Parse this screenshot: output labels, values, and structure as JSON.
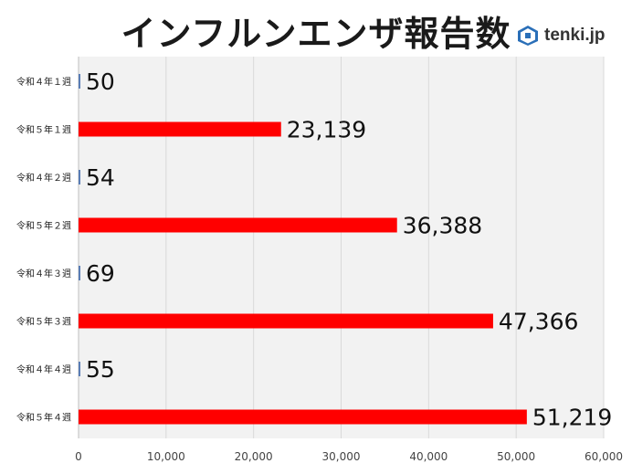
{
  "title": "インフルンエンザ報告数",
  "logo": {
    "text": "tenki.jp",
    "icon": "tenki-logo-icon"
  },
  "colors": {
    "red": "#FF0000",
    "blue": "#5A7DB5",
    "grid": "#D9D9D9",
    "plot_bg": "#F2F2F2"
  },
  "chart_data": {
    "type": "bar",
    "orientation": "horizontal",
    "title": "インフルンエンザ報告数",
    "categories": [
      "令和４年１週",
      "令和５年１週",
      "令和４年２週",
      "令和５年２週",
      "令和４年３週",
      "令和５年３週",
      "令和４年４週",
      "令和５年４週"
    ],
    "values": [
      50,
      23139,
      54,
      36388,
      69,
      47366,
      55,
      51219
    ],
    "value_labels": [
      "50",
      "23,139",
      "54",
      "36,388",
      "69",
      "47,366",
      "55",
      "51,219"
    ],
    "bar_colors": [
      "#5A7DB5",
      "#FF0000",
      "#5A7DB5",
      "#FF0000",
      "#5A7DB5",
      "#FF0000",
      "#5A7DB5",
      "#FF0000"
    ],
    "xlim": [
      0,
      60000
    ],
    "xticks": [
      0,
      10000,
      20000,
      30000,
      40000,
      50000,
      60000
    ],
    "xtick_labels": [
      "0",
      "10,000",
      "20,000",
      "30,000",
      "40,000",
      "50,000",
      "60,000"
    ],
    "xlabel": "",
    "ylabel": "",
    "grid": true,
    "legend": "none"
  }
}
